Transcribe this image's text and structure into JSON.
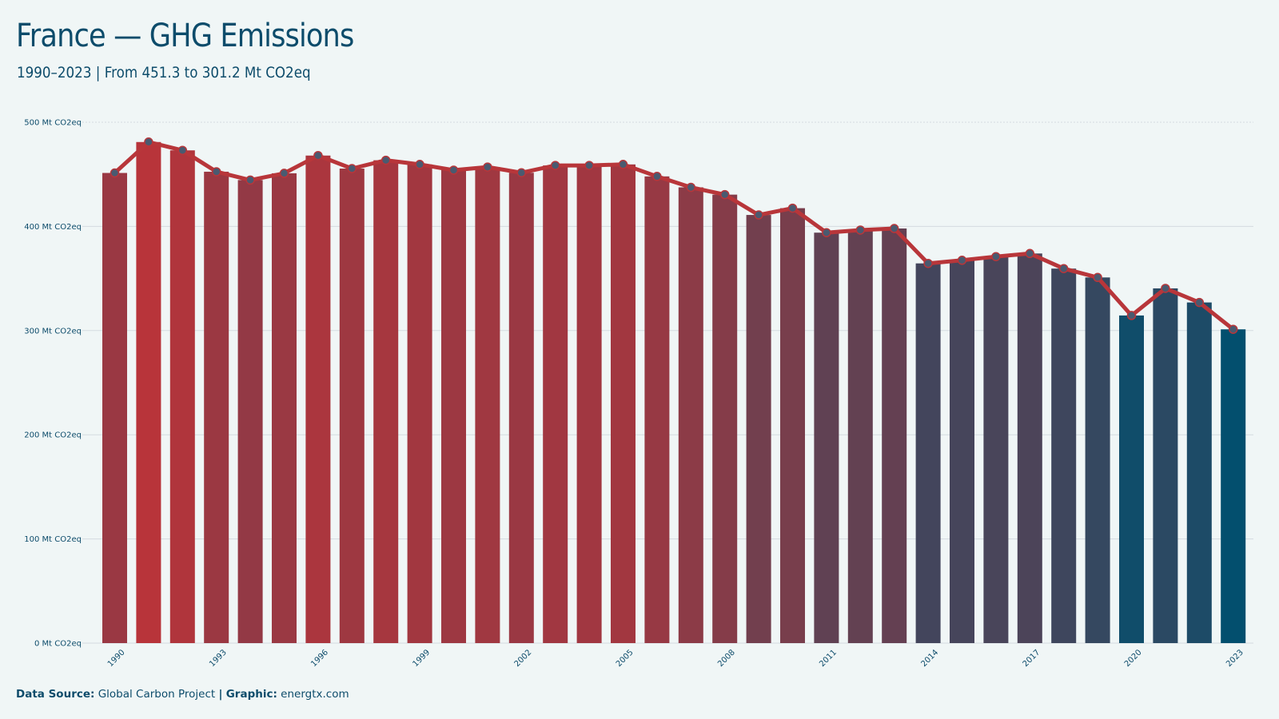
{
  "header": {
    "title": "France — GHG Emissions",
    "subtitle": "1990–2023 | From 451.3 to 301.2 Mt CO2eq"
  },
  "footer": {
    "source_label": "Data Source:",
    "source_value": "Global Carbon Project",
    "separator": "|",
    "graphic_label": "Graphic:",
    "graphic_value": "energtx.com"
  },
  "colors": {
    "background": "#f0f6f6",
    "text": "#0d4c6b",
    "line": "#b8363a",
    "bar_high": "#b8343a",
    "bar_low": "#034f6e",
    "marker": "#4a5a70",
    "grid": "#d4dbe0"
  },
  "chart_data": {
    "type": "bar",
    "title": "France — GHG Emissions",
    "subtitle": "1990–2023 | From 451.3 to 301.2 Mt CO2eq",
    "xlabel": "",
    "ylabel": "",
    "ylim": [
      0,
      500
    ],
    "y_ticks": [
      0,
      100,
      200,
      300,
      400,
      500
    ],
    "y_tick_labels": [
      "0 Mt CO2eq",
      "100 Mt CO2eq",
      "200 Mt CO2eq",
      "300 Mt CO2eq",
      "400 Mt CO2eq",
      "500 Mt CO2eq"
    ],
    "x_tick_labels": [
      "1990",
      "1993",
      "1996",
      "1999",
      "2002",
      "2005",
      "2008",
      "2011",
      "2014",
      "2017",
      "2020",
      "2023"
    ],
    "grid": true,
    "overlay_line": true,
    "categories": [
      1990,
      1991,
      1992,
      1993,
      1994,
      1995,
      1996,
      1997,
      1998,
      1999,
      2000,
      2001,
      2002,
      2003,
      2004,
      2005,
      2006,
      2007,
      2008,
      2009,
      2010,
      2011,
      2012,
      2013,
      2014,
      2015,
      2016,
      2017,
      2018,
      2019,
      2020,
      2021,
      2022,
      2023
    ],
    "values": [
      451.3,
      481.0,
      473.0,
      452.5,
      444.5,
      451.0,
      468.0,
      455.5,
      463.5,
      459.5,
      454.0,
      457.0,
      451.5,
      458.5,
      458.5,
      459.5,
      448.0,
      437.5,
      430.5,
      411.0,
      417.5,
      394.0,
      396.5,
      398.0,
      364.5,
      367.5,
      371.0,
      374.0,
      359.5,
      351.0,
      314.5,
      340.5,
      327.0,
      301.2
    ]
  }
}
